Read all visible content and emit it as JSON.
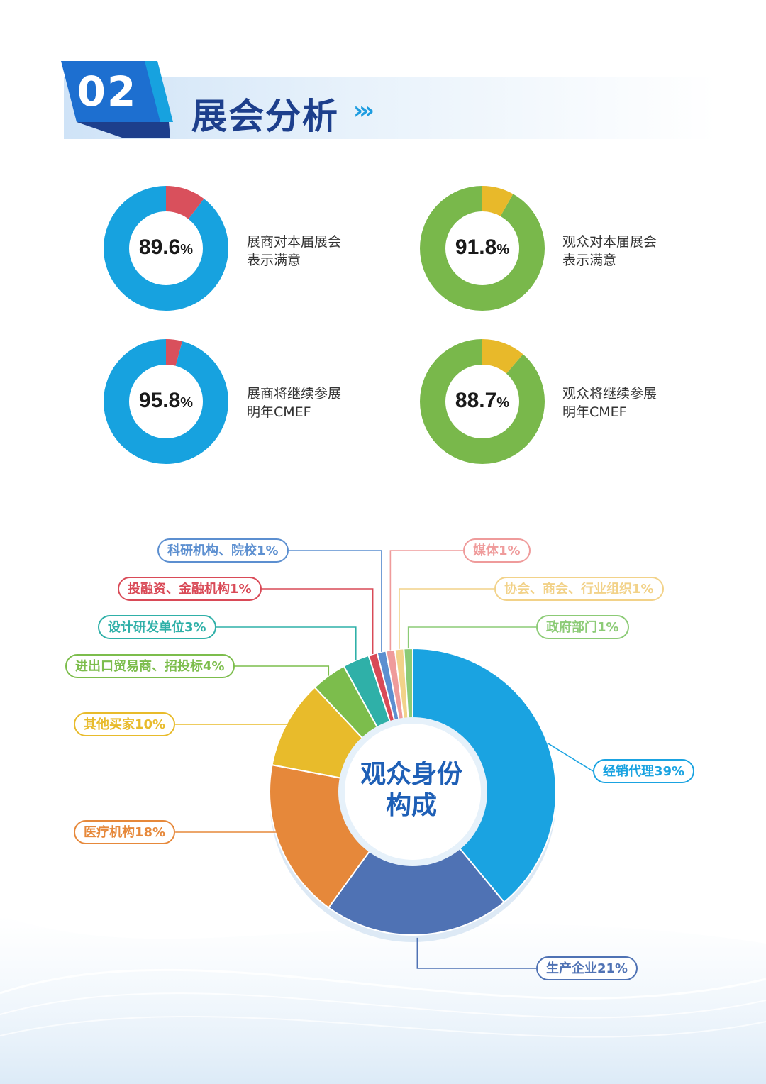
{
  "header": {
    "section_number": "02",
    "section_title": "展会分析",
    "arrows_glyph": "›››"
  },
  "colors": {
    "blue": "#17a2df",
    "green": "#79b84b",
    "red": "#d9505c",
    "yellow": "#e8b92a",
    "navy": "#1d3f8c"
  },
  "satisfaction": [
    {
      "value": "89.6",
      "unit": "%",
      "label_line1": "展商对本届展会",
      "label_line2": "表示满意",
      "percent": 89.6,
      "main_color": "#17a2df",
      "rest_color": "#d9505c"
    },
    {
      "value": "91.8",
      "unit": "%",
      "label_line1": "观众对本届展会",
      "label_line2": "表示满意",
      "percent": 91.8,
      "main_color": "#79b84b",
      "rest_color": "#e8b92a"
    },
    {
      "value": "95.8",
      "unit": "%",
      "label_line1": "展商将继续参展",
      "label_line2": "明年CMEF",
      "percent": 95.8,
      "main_color": "#17a2df",
      "rest_color": "#d9505c"
    },
    {
      "value": "88.7",
      "unit": "%",
      "label_line1": "观众将继续参展",
      "label_line2": "明年CMEF",
      "percent": 88.7,
      "main_color": "#79b84b",
      "rest_color": "#e8b92a"
    }
  ],
  "pie_center": {
    "line1": "观众身份",
    "line2": "构成"
  },
  "chart_data": [
    {
      "type": "pie",
      "values": [
        89.6,
        10.4
      ],
      "labels": [
        "89.6%",
        ""
      ],
      "annotations": [
        "展商对本届展会表示满意"
      ]
    },
    {
      "type": "pie",
      "values": [
        91.8,
        8.2
      ],
      "labels": [
        "91.8%",
        ""
      ],
      "annotations": [
        "观众对本届展会表示满意"
      ]
    },
    {
      "type": "pie",
      "values": [
        95.8,
        4.2
      ],
      "labels": [
        "95.8%",
        ""
      ],
      "annotations": [
        "展商将继续参展明年CMEF"
      ]
    },
    {
      "type": "pie",
      "values": [
        88.7,
        11.3
      ],
      "labels": [
        "88.7%",
        ""
      ],
      "annotations": [
        "观众将继续参展明年CMEF"
      ]
    },
    {
      "type": "pie",
      "title": "观众身份构成",
      "slices": [
        {
          "name": "经销代理",
          "value": 39,
          "label": "经销代理39%",
          "color": "#1aa3e1"
        },
        {
          "name": "生产企业",
          "value": 21,
          "label": "生产企业21%",
          "color": "#4f72b4"
        },
        {
          "name": "医疗机构",
          "value": 18,
          "label": "医疗机构18%",
          "color": "#e6883a"
        },
        {
          "name": "其他买家",
          "value": 10,
          "label": "其他买家10%",
          "color": "#e8bb2b"
        },
        {
          "name": "进出口贸易商、招投标",
          "value": 4,
          "label": "进出口贸易商、招投标4%",
          "color": "#7cbd4c"
        },
        {
          "name": "设计研发单位",
          "value": 3,
          "label": "设计研发单位3%",
          "color": "#2fb0a8"
        },
        {
          "name": "投融资、金融机构",
          "value": 1,
          "label": "投融资、金融机构1%",
          "color": "#d94a57"
        },
        {
          "name": "科研机构、院校",
          "value": 1,
          "label": "科研机构、院校1%",
          "color": "#5c8fd0"
        },
        {
          "name": "媒体",
          "value": 1,
          "label": "媒体1%",
          "color": "#ef9b9b"
        },
        {
          "name": "协会、商会、行业组织",
          "value": 1,
          "label": "协会、商会、行业组织1%",
          "color": "#f2d289"
        },
        {
          "name": "政府部门",
          "value": 1,
          "label": "政府部门1%",
          "color": "#8ccb76"
        }
      ]
    }
  ]
}
